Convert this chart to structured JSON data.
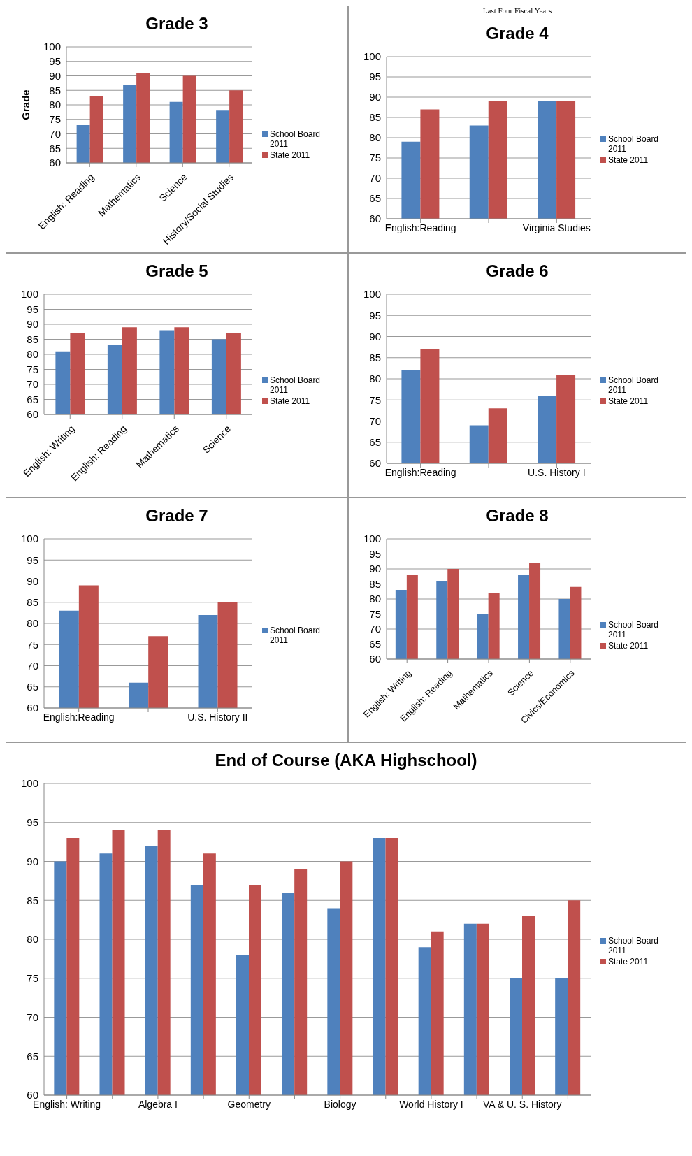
{
  "chart_data": [
    {
      "type": "bar",
      "title": "Grade 3",
      "ylabel": "Grade",
      "categories": [
        "English: Reading",
        "Mathematics",
        "Science",
        "History/Social Studies"
      ],
      "series": [
        {
          "name": "School Board 2011",
          "color": "#4f81bd",
          "values": [
            73,
            87,
            81,
            78
          ]
        },
        {
          "name": "State 2011",
          "color": "#c0504d",
          "values": [
            83,
            91,
            90,
            85
          ]
        }
      ],
      "ylim": [
        60,
        100
      ],
      "yticks": [
        60,
        65,
        70,
        75,
        80,
        85,
        90,
        95,
        100
      ],
      "grid": "y",
      "legend": "right"
    },
    {
      "type": "bar",
      "title": "Grade 4",
      "annotations": [
        "Last Four Fiscal Years"
      ],
      "categories": [
        "English:Reading",
        null,
        "Virginia Studies"
      ],
      "series": [
        {
          "name": "School Board 2011",
          "color": "#4f81bd",
          "values": [
            79,
            83,
            89
          ]
        },
        {
          "name": "State 2011",
          "color": "#c0504d",
          "values": [
            87,
            89,
            89
          ]
        }
      ],
      "ylim": [
        60,
        100
      ],
      "yticks": [
        60,
        65,
        70,
        75,
        80,
        85,
        90,
        95,
        100
      ],
      "grid": "y",
      "legend": "right"
    },
    {
      "type": "bar",
      "title": "Grade 5",
      "categories": [
        "English: Writing",
        "English: Reading",
        "Mathematics",
        "Science"
      ],
      "series": [
        {
          "name": "School Board 2011",
          "color": "#4f81bd",
          "values": [
            81,
            83,
            88,
            85
          ]
        },
        {
          "name": "State 2011",
          "color": "#c0504d",
          "values": [
            87,
            89,
            89,
            87
          ]
        }
      ],
      "ylim": [
        60,
        100
      ],
      "yticks": [
        60,
        65,
        70,
        75,
        80,
        85,
        90,
        95,
        100
      ],
      "grid": "y",
      "legend": "right"
    },
    {
      "type": "bar",
      "title": "Grade 6",
      "categories": [
        "English:Reading",
        null,
        "U.S. History I"
      ],
      "series": [
        {
          "name": "School Board 2011",
          "color": "#4f81bd",
          "values": [
            82,
            69,
            76
          ]
        },
        {
          "name": "State 2011",
          "color": "#c0504d",
          "values": [
            87,
            73,
            81
          ]
        }
      ],
      "ylim": [
        60,
        100
      ],
      "yticks": [
        60,
        65,
        70,
        75,
        80,
        85,
        90,
        95,
        100
      ],
      "grid": "y",
      "legend": "right"
    },
    {
      "type": "bar",
      "title": "Grade 7",
      "categories": [
        "English:Reading",
        null,
        "U.S. History II"
      ],
      "series": [
        {
          "name": "School Board 2011",
          "color": "#4f81bd",
          "values": [
            83,
            66,
            82
          ]
        },
        {
          "color": "#c0504d",
          "values": [
            89,
            77,
            85
          ]
        }
      ],
      "ylim": [
        60,
        100
      ],
      "yticks": [
        60,
        65,
        70,
        75,
        80,
        85,
        90,
        95,
        100
      ],
      "grid": "y",
      "legend": "right"
    },
    {
      "type": "bar",
      "title": "Grade 8",
      "categories": [
        "English:  Writing",
        "English:  Reading",
        "Mathematics",
        "Science",
        "Civics/Economics"
      ],
      "series": [
        {
          "name": "School Board 2011",
          "color": "#4f81bd",
          "values": [
            83,
            86,
            75,
            88,
            80
          ]
        },
        {
          "name": "State 2011",
          "color": "#c0504d",
          "values": [
            88,
            90,
            82,
            92,
            84
          ]
        }
      ],
      "ylim": [
        60,
        100
      ],
      "yticks": [
        60,
        65,
        70,
        75,
        80,
        85,
        90,
        95,
        100
      ],
      "grid": "y",
      "legend": "right"
    },
    {
      "type": "bar",
      "title": "End of Course (AKA Highschool)",
      "categories": [
        "English:  Writing",
        null,
        "Algebra I",
        null,
        "Geometry",
        null,
        "Biology",
        null,
        "World History I",
        null,
        "VA & U. S. History",
        null
      ],
      "series": [
        {
          "name": "School Board 2011",
          "color": "#4f81bd",
          "values": [
            90,
            91,
            92,
            87,
            78,
            86,
            84,
            93,
            79,
            82,
            75,
            75
          ]
        },
        {
          "name": "State 2011",
          "color": "#c0504d",
          "values": [
            93,
            94,
            94,
            91,
            87,
            89,
            90,
            93,
            81,
            82,
            83,
            85
          ]
        }
      ],
      "ylim": [
        60,
        100
      ],
      "yticks": [
        60,
        65,
        70,
        75,
        80,
        85,
        90,
        95,
        100
      ],
      "grid": "y",
      "legend": "right"
    }
  ]
}
